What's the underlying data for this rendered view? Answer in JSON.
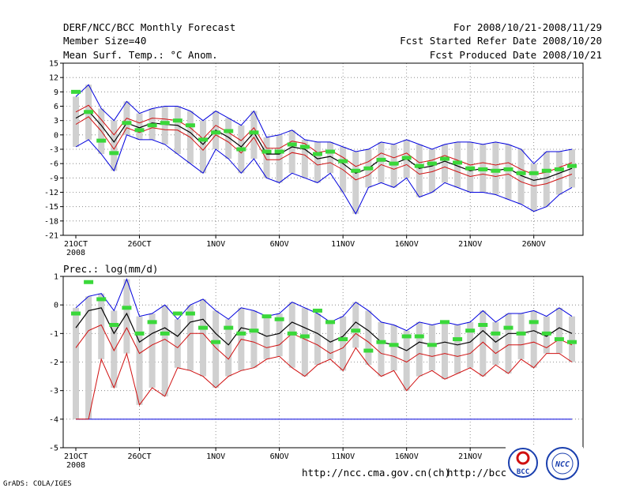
{
  "header": {
    "title": "DERF/NCC/BCC Monthly Forecast",
    "member_size": "Member Size=40",
    "variable": "Mean Surf. Temp.: °C Anom.",
    "period": "For 2008/10/21-2008/11/29",
    "refer_date": "Fcst Started Refer Date 2008/10/20",
    "produced_date": "Fcst Produced Date 2008/10/21"
  },
  "footer": {
    "grads_credit": "GrADS: COLA/IGES",
    "url_ncc": "http://ncc.cma.gov.cn(ch)",
    "url_bcc": "http://bcc.c",
    "logo_bcc": "BCC",
    "logo_ncc": "NCC"
  },
  "x_axis": {
    "labels": [
      "21OCT",
      "26OCT",
      "1NOV",
      "6NOV",
      "11NOV",
      "16NOV",
      "21NOV",
      "26NOV"
    ],
    "year_label": "2008"
  },
  "colors": {
    "ensemble_mean": "#000000",
    "spread": "#d01010",
    "envelope": "#0000dd",
    "box": "#d0d0d0",
    "observed_marker": "#3ad83a"
  },
  "chart_data": [
    {
      "type": "line",
      "title": "Mean Surf. Temp.: °C Anom.",
      "ylim": [
        -21,
        15
      ],
      "yticks": [
        15,
        12,
        9,
        6,
        3,
        0,
        -3,
        -6,
        -9,
        -12,
        -15,
        -18,
        -21
      ],
      "days": 40,
      "series": [
        {
          "name": "mean",
          "values": [
            3.5,
            5,
            2,
            -1.5,
            2.5,
            1.5,
            2.5,
            2.2,
            2,
            0.5,
            -2,
            1,
            -0.5,
            -2.5,
            0.5,
            -4,
            -4,
            -2.5,
            -3,
            -5,
            -4.5,
            -6,
            -8,
            -7,
            -5,
            -6,
            -5,
            -7,
            -6.5,
            -5.5,
            -6.5,
            -7.5,
            -7,
            -7.5,
            -7,
            -8.5,
            -9.5,
            -9,
            -8,
            -7
          ]
        },
        {
          "name": "upper",
          "values": [
            4.8,
            6.2,
            3.2,
            0,
            3.5,
            2.5,
            3.5,
            3.3,
            3,
            1.5,
            -0.8,
            2,
            0.5,
            -1.2,
            1.5,
            -2.8,
            -2.8,
            -1.3,
            -1.8,
            -3.7,
            -3.2,
            -4.7,
            -6.6,
            -5.6,
            -3.8,
            -4.8,
            -3.8,
            -5.8,
            -5.3,
            -4.3,
            -5.3,
            -6.3,
            -5.8,
            -6.3,
            -5.8,
            -7.2,
            -8.3,
            -7.8,
            -6.8,
            -5.8
          ]
        },
        {
          "name": "lower",
          "values": [
            2.2,
            3.8,
            0.8,
            -3,
            1.5,
            0.5,
            1.5,
            1.1,
            1,
            -0.5,
            -3.2,
            0,
            -1.5,
            -3.8,
            -0.5,
            -5.2,
            -5.2,
            -3.7,
            -4.2,
            -6.3,
            -5.8,
            -7.3,
            -9.4,
            -8.4,
            -6.2,
            -7.2,
            -6.2,
            -8.2,
            -7.7,
            -6.7,
            -7.7,
            -8.7,
            -8.2,
            -8.7,
            -8.2,
            -9.8,
            -10.7,
            -10.2,
            -9.2,
            -8.2
          ]
        },
        {
          "name": "max",
          "values": [
            8,
            10.5,
            5.5,
            3,
            7,
            4.5,
            5.5,
            6,
            6,
            5,
            3,
            5,
            3.5,
            2,
            5,
            -0.5,
            0,
            1,
            -1,
            -1.5,
            -1.5,
            -2.5,
            -3.5,
            -3,
            -1.5,
            -2,
            -1,
            -2,
            -3,
            -2,
            -1.5,
            -1.5,
            -2,
            -1.5,
            -2,
            -3,
            -6,
            -3.5,
            -3.5,
            -3
          ]
        },
        {
          "name": "min",
          "values": [
            -2.5,
            -1,
            -4,
            -7.5,
            0,
            -1,
            -1,
            -2,
            -4,
            -6,
            -8,
            -3,
            -5,
            -8,
            -5,
            -9,
            -10,
            -8,
            -9,
            -10,
            -8,
            -12,
            -16.5,
            -11,
            -10,
            -11,
            -9,
            -13,
            -12,
            -10,
            -11,
            -12,
            -12,
            -12.5,
            -13.5,
            -14.5,
            -16,
            -15,
            -12.5,
            -11
          ]
        },
        {
          "name": "observed",
          "values": [
            9,
            4.8,
            -1.2,
            -3.8,
            2.5,
            1,
            2,
            2.5,
            3,
            2,
            -1,
            0.5,
            0.8,
            -3,
            0.5,
            -3.5,
            -3.5,
            -2,
            -2.5,
            -4,
            -3.5,
            -5.5,
            -7.5,
            -7,
            -5.2,
            -6,
            -4.8,
            -6.5,
            -6,
            -5,
            -5.8,
            -7,
            -7.2,
            -7.5,
            -7.2,
            -8,
            -8,
            -7.5,
            -7.2,
            -6.5
          ]
        }
      ]
    },
    {
      "type": "line",
      "title": "Prec.: log(mm/d)",
      "ylim": [
        -5,
        1
      ],
      "yticks": [
        1,
        0,
        -1,
        -2,
        -3,
        -4,
        -5
      ],
      "days": 40,
      "series": [
        {
          "name": "mean",
          "values": [
            -0.8,
            -0.2,
            -0.1,
            -1,
            -0.3,
            -1.3,
            -1,
            -0.8,
            -1.1,
            -0.6,
            -0.5,
            -1,
            -1.4,
            -0.8,
            -0.9,
            -1.1,
            -1,
            -0.6,
            -0.8,
            -1,
            -1.3,
            -1.1,
            -0.6,
            -0.9,
            -1.3,
            -1.4,
            -1.6,
            -1.3,
            -1.4,
            -1.3,
            -1.4,
            -1.3,
            -0.9,
            -1.3,
            -1,
            -1,
            -0.9,
            -1.1,
            -0.8,
            -1
          ]
        },
        {
          "name": "upper",
          "values": [
            -0.1,
            0.3,
            0.4,
            -0.2,
            0.9,
            -0.4,
            -0.3,
            0,
            -0.5,
            0,
            0.2,
            -0.2,
            -0.5,
            -0.1,
            -0.2,
            -0.4,
            -0.3,
            0.1,
            -0.1,
            -0.3,
            -0.6,
            -0.4,
            0.1,
            -0.2,
            -0.6,
            -0.7,
            -0.9,
            -0.6,
            -0.7,
            -0.6,
            -0.7,
            -0.6,
            -0.2,
            -0.6,
            -0.3,
            -0.3,
            -0.2,
            -0.4,
            -0.1,
            -0.4
          ]
        },
        {
          "name": "lower",
          "values": [
            -1.5,
            -0.9,
            -0.7,
            -1.6,
            -0.8,
            -1.7,
            -1.4,
            -1.2,
            -1.5,
            -1,
            -1,
            -1.5,
            -1.9,
            -1.2,
            -1.3,
            -1.5,
            -1.4,
            -1,
            -1.2,
            -1.4,
            -1.7,
            -1.5,
            -1,
            -1.3,
            -1.7,
            -1.8,
            -2,
            -1.7,
            -1.8,
            -1.7,
            -1.8,
            -1.7,
            -1.3,
            -1.7,
            -1.4,
            -1.4,
            -1.3,
            -1.5,
            -1.2,
            -1.4
          ]
        },
        {
          "name": "max",
          "values": [
            -0.1,
            0.3,
            0.4,
            -0.2,
            0.9,
            -0.4,
            -0.3,
            0,
            -0.5,
            0,
            0.2,
            -0.2,
            -0.5,
            -0.1,
            -0.2,
            -0.4,
            -0.3,
            0.1,
            -0.1,
            -0.3,
            -0.6,
            -0.4,
            0.1,
            -0.2,
            -0.6,
            -0.7,
            -0.9,
            -0.6,
            -0.7,
            -0.6,
            -0.7,
            -0.6,
            -0.2,
            -0.6,
            -0.3,
            -0.3,
            -0.2,
            -0.4,
            -0.1,
            -0.4
          ]
        },
        {
          "name": "min",
          "values": [
            -4,
            -4,
            -1.9,
            -2.9,
            -1.7,
            -3.5,
            -2.9,
            -3.2,
            -2.2,
            -2.3,
            -2.5,
            -2.9,
            -2.5,
            -2.3,
            -2.2,
            -1.9,
            -1.8,
            -2.2,
            -2.5,
            -2.1,
            -1.9,
            -2.3,
            -1.5,
            -2.1,
            -2.5,
            -2.3,
            -3,
            -2.5,
            -2.3,
            -2.6,
            -2.4,
            -2.2,
            -2.5,
            -2.1,
            -2.4,
            -1.9,
            -2.2,
            -1.7,
            -1.7,
            -2
          ]
        },
        {
          "name": "observed",
          "values": [
            -0.3,
            0.8,
            0.2,
            -0.7,
            -0.1,
            -1,
            -0.6,
            -1,
            -0.3,
            -0.3,
            -0.8,
            -1.3,
            -0.8,
            -1,
            -0.9,
            -0.4,
            -0.5,
            -1,
            -1.1,
            -0.2,
            -0.6,
            -1.2,
            -0.9,
            -1.6,
            -1.3,
            -1.4,
            -1.1,
            -1.1,
            -1.4,
            -0.6,
            -1.2,
            -0.9,
            -0.7,
            -1,
            -0.8,
            -1,
            -0.6,
            -1,
            -1.2,
            -1.3
          ]
        }
      ]
    }
  ]
}
